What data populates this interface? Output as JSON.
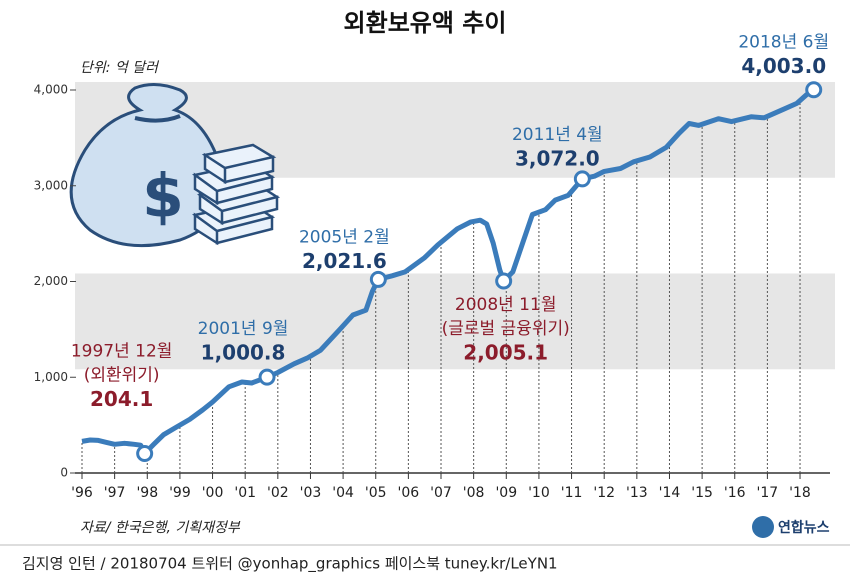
{
  "chart_data": {
    "type": "line",
    "title": "외환보유액 추이",
    "unit": "단위: 억 달러",
    "source": "자료/ 한국은행, 기획재정부",
    "logo": "연합뉴스",
    "credit": "김지영 인턴 / 20180704 트위터 @yonhap_graphics  페이스북 tuney.kr/LeYN1",
    "xlim": [
      1996,
      2018.75
    ],
    "ylim": [
      0,
      4000
    ],
    "xticks": [
      {
        "value": 1996,
        "label": "'96"
      },
      {
        "value": 1997,
        "label": "'97"
      },
      {
        "value": 1998,
        "label": "'98"
      },
      {
        "value": 1999,
        "label": "'99"
      },
      {
        "value": 2000,
        "label": "'00"
      },
      {
        "value": 2001,
        "label": "'01"
      },
      {
        "value": 2002,
        "label": "'02"
      },
      {
        "value": 2003,
        "label": "'03"
      },
      {
        "value": 2004,
        "label": "'04"
      },
      {
        "value": 2005,
        "label": "'05"
      },
      {
        "value": 2006,
        "label": "'06"
      },
      {
        "value": 2007,
        "label": "'07"
      },
      {
        "value": 2008,
        "label": "'08"
      },
      {
        "value": 2009,
        "label": "'09"
      },
      {
        "value": 2010,
        "label": "'10"
      },
      {
        "value": 2011,
        "label": "'11"
      },
      {
        "value": 2012,
        "label": "'12"
      },
      {
        "value": 2013,
        "label": "'13"
      },
      {
        "value": 2014,
        "label": "'14"
      },
      {
        "value": 2015,
        "label": "'15"
      },
      {
        "value": 2016,
        "label": "'16"
      },
      {
        "value": 2017,
        "label": "'17"
      },
      {
        "value": 2018,
        "label": "'18"
      }
    ],
    "yticks": [
      0,
      {
        "value": 1000,
        "label": "1,000"
      },
      {
        "value": 2000,
        "label": "2,000"
      },
      {
        "value": 3000,
        "label": "3,000"
      },
      {
        "value": 4000,
        "label": "4,000"
      }
    ],
    "bands": [
      [
        1000,
        2000
      ],
      [
        3000,
        4000
      ]
    ],
    "series": [
      {
        "name": "외환보유액",
        "color": "#3b7cbb",
        "x": [
          1996.0,
          1996.25,
          1996.5,
          1996.75,
          1997.0,
          1997.3,
          1997.6,
          1997.8,
          1997.92,
          1998.2,
          1998.5,
          1998.9,
          1999.3,
          1999.7,
          2000.0,
          2000.5,
          2000.9,
          2001.2,
          2001.67,
          2002.0,
          2002.5,
          2002.9,
          2003.3,
          2003.9,
          2004.3,
          2004.7,
          2004.9,
          2005.08,
          2005.5,
          2005.9,
          2006.5,
          2006.9,
          2007.5,
          2007.9,
          2008.2,
          2008.4,
          2008.6,
          2008.8,
          2008.92,
          2009.2,
          2009.5,
          2009.8,
          2010.2,
          2010.5,
          2010.9,
          2011.33,
          2011.7,
          2012.0,
          2012.5,
          2012.9,
          2013.4,
          2013.9,
          2014.3,
          2014.6,
          2014.9,
          2015.5,
          2015.9,
          2016.5,
          2016.9,
          2017.5,
          2017.9,
          2018.2,
          2018.42
        ],
        "values": [
          330,
          345,
          340,
          320,
          300,
          310,
          300,
          290,
          204.1,
          300,
          400,
          480,
          560,
          660,
          740,
          900,
          950,
          940,
          1000.8,
          1050,
          1140,
          1200,
          1280,
          1500,
          1650,
          1700,
          1900,
          2021.6,
          2060,
          2100,
          2250,
          2380,
          2550,
          2620,
          2640,
          2600,
          2400,
          2120,
          2005.1,
          2100,
          2400,
          2700,
          2750,
          2850,
          2900,
          3072.0,
          3100,
          3150,
          3180,
          3250,
          3300,
          3400,
          3550,
          3650,
          3630,
          3700,
          3670,
          3720,
          3710,
          3800,
          3860,
          3950,
          4003.0
        ],
        "value_labels": [
          null,
          null,
          null,
          null,
          null,
          null,
          null,
          null,
          "204.1",
          null,
          null,
          null,
          null,
          null,
          null,
          null,
          null,
          null,
          "1,000.8",
          null,
          null,
          null,
          null,
          null,
          null,
          null,
          null,
          "2,021.6",
          null,
          null,
          null,
          null,
          null,
          null,
          null,
          null,
          null,
          null,
          "2,005.1",
          null,
          null,
          null,
          null,
          null,
          null,
          "3,072.0",
          null,
          null,
          null,
          null,
          null,
          null,
          null,
          null,
          null,
          null,
          null,
          null,
          null,
          null,
          null,
          null,
          "4,003.0"
        ]
      }
    ],
    "annotations": [
      {
        "date": "1997년 12월",
        "note": "(외환위기)",
        "color": "#8c1c2b"
      },
      {
        "date": "2001년 9월",
        "color": "#2f6ea8"
      },
      {
        "date": "2005년 2월",
        "color": "#2f6ea8"
      },
      {
        "date": "2008년 11월",
        "note": "(글로벌 금융위기)",
        "color": "#8c1c2b"
      },
      {
        "date": "2011년 4월",
        "color": "#2f6ea8"
      },
      {
        "date": "2018년 6월",
        "color": "#2f6ea8"
      }
    ]
  }
}
